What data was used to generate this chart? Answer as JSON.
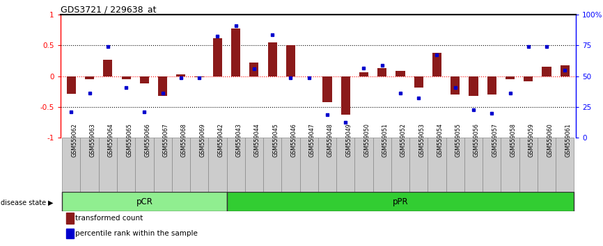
{
  "title": "GDS3721 / 229638_at",
  "samples": [
    "GSM559062",
    "GSM559063",
    "GSM559064",
    "GSM559065",
    "GSM559066",
    "GSM559067",
    "GSM559068",
    "GSM559069",
    "GSM559042",
    "GSM559043",
    "GSM559044",
    "GSM559045",
    "GSM559046",
    "GSM559047",
    "GSM559048",
    "GSM559049",
    "GSM559050",
    "GSM559051",
    "GSM559052",
    "GSM559053",
    "GSM559054",
    "GSM559055",
    "GSM559056",
    "GSM559057",
    "GSM559058",
    "GSM559059",
    "GSM559060",
    "GSM559061"
  ],
  "bar_values": [
    -0.28,
    -0.05,
    0.27,
    -0.05,
    -0.12,
    -0.32,
    0.03,
    -0.01,
    0.62,
    0.78,
    0.22,
    0.55,
    0.5,
    0.0,
    -0.42,
    -0.62,
    0.06,
    0.13,
    0.09,
    -0.18,
    0.38,
    -0.3,
    -0.32,
    -0.3,
    -0.05,
    -0.08,
    0.15,
    0.18
  ],
  "dot_values": [
    -0.58,
    -0.27,
    0.48,
    -0.18,
    -0.58,
    -0.27,
    -0.02,
    -0.02,
    0.65,
    0.82,
    0.12,
    0.68,
    -0.02,
    -0.02,
    -0.62,
    -0.75,
    0.13,
    0.18,
    -0.27,
    -0.35,
    0.35,
    -0.18,
    -0.55,
    -0.6,
    -0.27,
    0.48,
    0.48,
    0.1
  ],
  "pCR_count": 9,
  "pPR_count": 19,
  "bar_color": "#8B1A1A",
  "dot_color": "#0000CD",
  "pCR_color": "#90EE90",
  "pPR_color": "#32CD32",
  "bg_color": "#FFFFFF",
  "ylim": [
    -1.0,
    1.0
  ],
  "left_ytick_labels": [
    "-1",
    "-0.5",
    "0",
    "0.5",
    "1"
  ],
  "right_ytick_labels": [
    "0",
    "25",
    "50",
    "75",
    "100%"
  ]
}
